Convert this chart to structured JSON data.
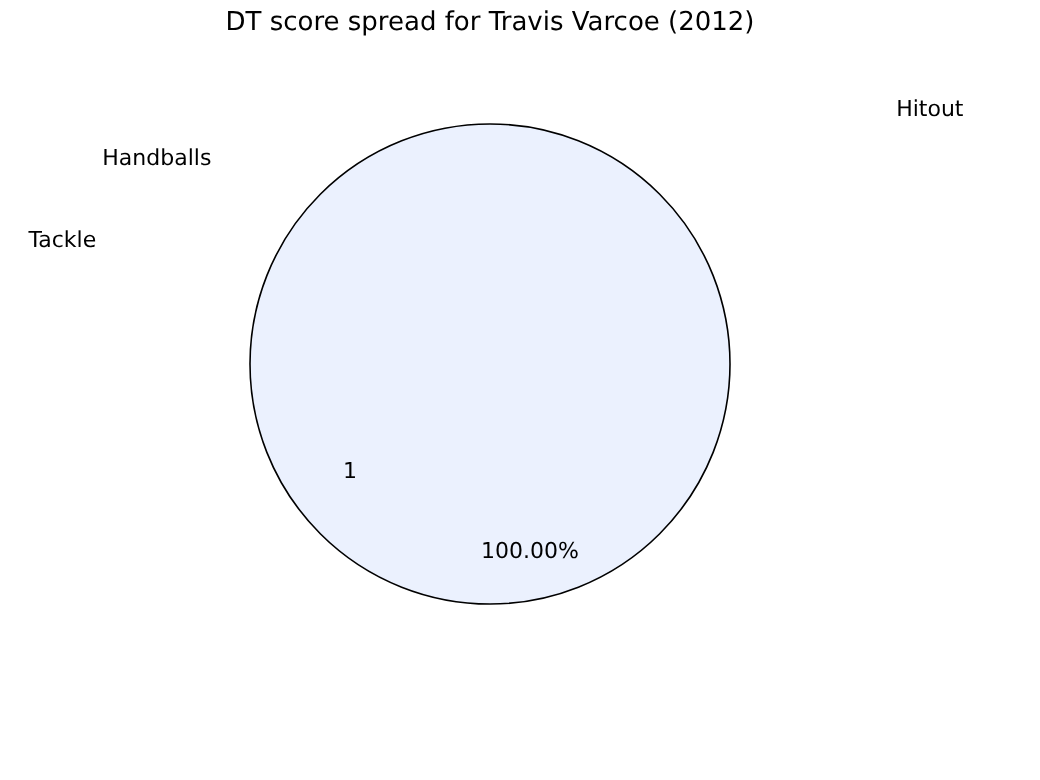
{
  "chart_data": {
    "type": "pie",
    "title": "DT score spread for Travis Varcoe (2012)",
    "categories": [
      "1"
    ],
    "values": [
      100
    ],
    "colors": [
      "#ebf1fe"
    ],
    "value_labels": [
      "100.00%"
    ],
    "annotations": [
      "Hitout",
      "Handballs",
      "Tackle"
    ],
    "legend": false
  }
}
